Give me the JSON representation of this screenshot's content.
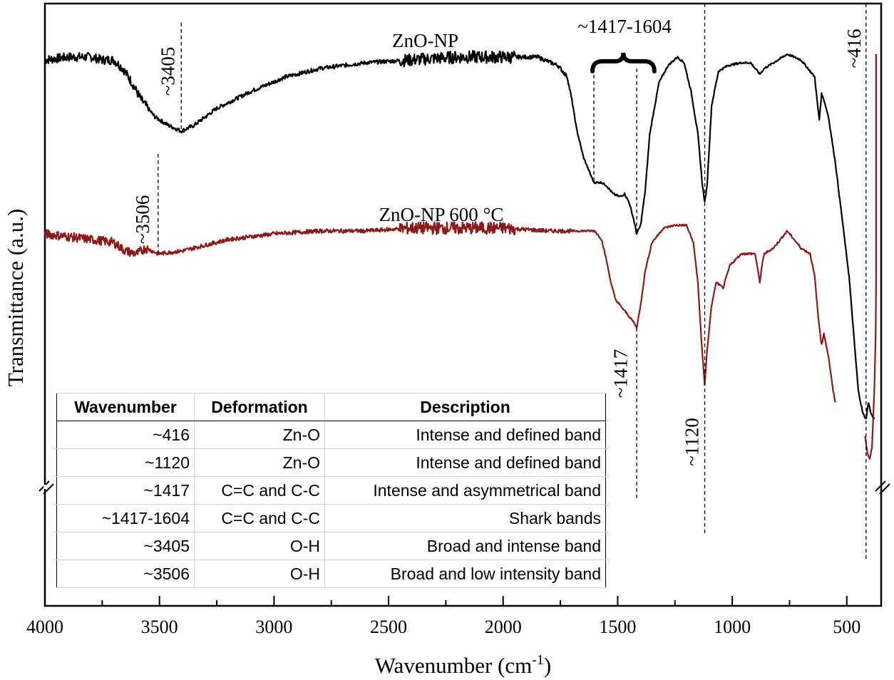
{
  "chart_data": {
    "type": "line",
    "xlabel": "Wavenumber (cm",
    "xlabel_sup": "-1",
    "xlabel_end": ")",
    "ylabel": "Transmittance (a.u.)",
    "xlim": [
      4000,
      350
    ],
    "x_reversed": true,
    "xticks": [
      4000,
      3500,
      3000,
      2500,
      2000,
      1500,
      1000,
      500
    ],
    "y_ticks_shown": false,
    "axis_break": true,
    "series": [
      {
        "name": "ZnO-NP",
        "color": "#000000",
        "points": [
          [
            4000,
            76
          ],
          [
            3900,
            77
          ],
          [
            3800,
            77
          ],
          [
            3750,
            76
          ],
          [
            3700,
            76
          ],
          [
            3660,
            73
          ],
          [
            3620,
            68
          ],
          [
            3580,
            62
          ],
          [
            3520,
            56
          ],
          [
            3460,
            53
          ],
          [
            3405,
            51
          ],
          [
            3350,
            53
          ],
          [
            3250,
            59
          ],
          [
            3100,
            65
          ],
          [
            2950,
            70
          ],
          [
            2800,
            73
          ],
          [
            2600,
            75
          ],
          [
            2400,
            76
          ],
          [
            2200,
            77
          ],
          [
            2000,
            77
          ],
          [
            1850,
            77
          ],
          [
            1760,
            74
          ],
          [
            1720,
            70
          ],
          [
            1700,
            62
          ],
          [
            1680,
            52
          ],
          [
            1650,
            42
          ],
          [
            1620,
            36
          ],
          [
            1604,
            33
          ],
          [
            1570,
            33
          ],
          [
            1550,
            32
          ],
          [
            1520,
            29
          ],
          [
            1490,
            28
          ],
          [
            1470,
            29
          ],
          [
            1450,
            26
          ],
          [
            1430,
            20
          ],
          [
            1417,
            15
          ],
          [
            1400,
            18
          ],
          [
            1380,
            30
          ],
          [
            1360,
            50
          ],
          [
            1320,
            68
          ],
          [
            1280,
            74
          ],
          [
            1240,
            77
          ],
          [
            1210,
            75
          ],
          [
            1180,
            65
          ],
          [
            1150,
            50
          ],
          [
            1130,
            32
          ],
          [
            1120,
            26
          ],
          [
            1110,
            32
          ],
          [
            1090,
            60
          ],
          [
            1060,
            72
          ],
          [
            1020,
            74
          ],
          [
            960,
            75
          ],
          [
            920,
            75
          ],
          [
            900,
            73
          ],
          [
            880,
            71
          ],
          [
            860,
            73
          ],
          [
            820,
            75
          ],
          [
            760,
            78
          ],
          [
            700,
            76
          ],
          [
            660,
            72
          ],
          [
            640,
            70
          ],
          [
            630,
            62
          ],
          [
            620,
            55
          ],
          [
            610,
            64
          ],
          [
            600,
            62
          ],
          [
            580,
            56
          ],
          [
            550,
            40
          ],
          [
            520,
            20
          ],
          [
            490,
            0
          ],
          [
            470,
            -20
          ],
          [
            450,
            -40
          ],
          [
            430,
            -48
          ],
          [
            416,
            -50
          ],
          [
            405,
            -44
          ],
          [
            395,
            -48
          ],
          [
            380,
            -50
          ]
        ]
      },
      {
        "name": "ZnO-NP 600 °C",
        "color": "#8b1a1a",
        "points": [
          [
            4000,
            15
          ],
          [
            3900,
            14
          ],
          [
            3800,
            13
          ],
          [
            3700,
            12
          ],
          [
            3650,
            9
          ],
          [
            3600,
            8
          ],
          [
            3560,
            10
          ],
          [
            3506,
            8
          ],
          [
            3400,
            9
          ],
          [
            3300,
            11
          ],
          [
            3200,
            13
          ],
          [
            3000,
            15
          ],
          [
            2800,
            16
          ],
          [
            2600,
            16
          ],
          [
            2400,
            17
          ],
          [
            2200,
            17
          ],
          [
            2000,
            17
          ],
          [
            1800,
            16
          ],
          [
            1600,
            16
          ],
          [
            1570,
            13
          ],
          [
            1550,
            6
          ],
          [
            1530,
            -2
          ],
          [
            1510,
            -8
          ],
          [
            1490,
            -10
          ],
          [
            1470,
            -12
          ],
          [
            1450,
            -14
          ],
          [
            1430,
            -16
          ],
          [
            1417,
            -18
          ],
          [
            1400,
            -10
          ],
          [
            1380,
            2
          ],
          [
            1350,
            12
          ],
          [
            1300,
            17
          ],
          [
            1250,
            18
          ],
          [
            1200,
            18
          ],
          [
            1170,
            12
          ],
          [
            1150,
            -2
          ],
          [
            1135,
            -22
          ],
          [
            1120,
            -38
          ],
          [
            1110,
            -26
          ],
          [
            1090,
            -10
          ],
          [
            1070,
            -2
          ],
          [
            1040,
            -4
          ],
          [
            1010,
            4
          ],
          [
            960,
            8
          ],
          [
            920,
            8
          ],
          [
            900,
            8
          ],
          [
            880,
            -2
          ],
          [
            870,
            4
          ],
          [
            860,
            8
          ],
          [
            820,
            10
          ],
          [
            760,
            16
          ],
          [
            700,
            10
          ],
          [
            660,
            8
          ],
          [
            640,
            0
          ],
          [
            625,
            -14
          ],
          [
            610,
            -24
          ],
          [
            600,
            -20
          ],
          [
            580,
            -28
          ],
          [
            560,
            -40
          ],
          [
            550,
            -44
          ]
        ]
      },
      {
        "name": "ZnO-NP 600 °C",
        "color": "#8b1a1a",
        "points": [
          [
            420,
            -56
          ],
          [
            410,
            -62
          ],
          [
            400,
            -64
          ],
          [
            390,
            -60
          ],
          [
            380,
            -40
          ],
          [
            374,
            -20
          ],
          [
            372,
            0
          ],
          [
            372,
            40
          ],
          [
            372,
            78
          ]
        ]
      }
    ],
    "annotations": [
      {
        "text": "ZnO-NP",
        "x": 2340,
        "y": 80.5,
        "rotate": 0
      },
      {
        "text": "ZnO-NP 600 °C",
        "x": 2270,
        "y": 19.5,
        "rotate": 0
      },
      {
        "text": "~3405",
        "x": 3435,
        "y": 72,
        "rotate": -90
      },
      {
        "text": "~3506",
        "x": 3545,
        "y": 20,
        "rotate": -90
      },
      {
        "text": "~1417-1604",
        "x": 1470,
        "y": 85.5,
        "rotate": 0
      },
      {
        "text": "~1417",
        "x": 1460,
        "y": -34,
        "rotate": -90
      },
      {
        "text": "~1120",
        "x": 1148,
        "y": -58,
        "rotate": -90
      },
      {
        "text": "~416",
        "x": 440,
        "y": 80,
        "rotate": -90
      }
    ],
    "vlines": [
      {
        "x": 3405,
        "y_top": 89,
        "y_bottom": 51
      },
      {
        "x": 3506,
        "y_top": 43,
        "y_bottom": 8
      },
      {
        "x": 1604,
        "y_top": 73,
        "y_bottom": 33
      },
      {
        "x": 1417,
        "y_top": 73,
        "y_bottom": 15
      },
      {
        "x": 1417,
        "y_top": -18,
        "y_bottom": -78
      },
      {
        "x": 1120,
        "y_top": 100,
        "y_bottom": -90
      },
      {
        "x": 416,
        "y_top": 100,
        "y_bottom": -100
      }
    ],
    "table": {
      "headers": [
        "Wavenumber",
        "Deformation",
        "Description"
      ],
      "rows": [
        [
          "~416",
          "Zn-O",
          "Intense and defined band"
        ],
        [
          "~1120",
          "Zn-O",
          "Intense and defined band"
        ],
        [
          "~1417",
          "C=C and C-C",
          "Intense and asymmetrical band"
        ],
        [
          "~1417-1604",
          "C=C and C-C",
          "Shark bands"
        ],
        [
          "~3405",
          "O-H",
          "Broad and intense band"
        ],
        [
          "~3506",
          "O-H",
          "Broad and low intensity band"
        ]
      ]
    }
  }
}
